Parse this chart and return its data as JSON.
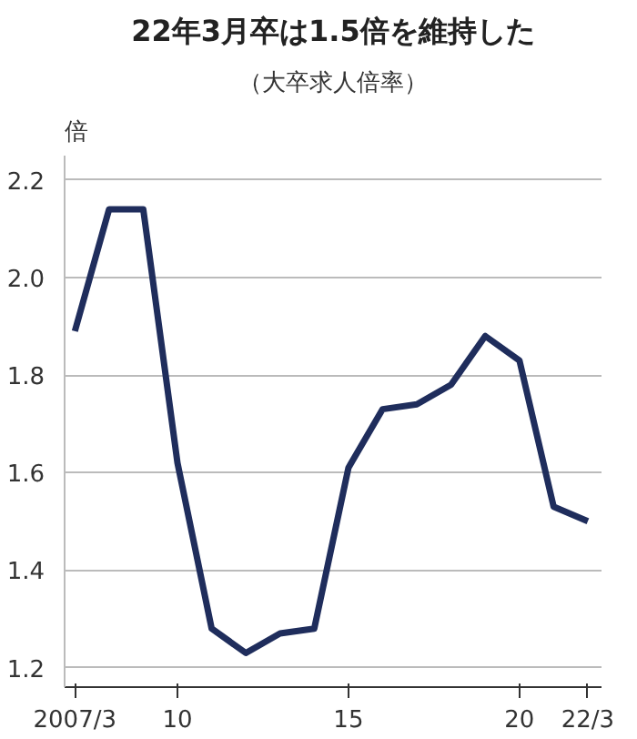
{
  "chart_data": {
    "type": "line",
    "title": "22年3月卒は1.5倍を維持した",
    "subtitle": "（大卒求人倍率）",
    "ylabel": "倍",
    "x": [
      2007,
      2008,
      2009,
      2010,
      2011,
      2012,
      2013,
      2014,
      2015,
      2016,
      2017,
      2018,
      2019,
      2020,
      2021,
      2022
    ],
    "series": [
      {
        "color": "#1f2d5c",
        "values": [
          1.89,
          2.14,
          2.14,
          1.62,
          1.28,
          1.23,
          1.27,
          1.28,
          1.61,
          1.73,
          1.74,
          1.78,
          1.88,
          1.83,
          1.53,
          1.5
        ]
      }
    ],
    "xlim": [
      2006.7,
      2022.4
    ],
    "xticks": [
      {
        "value": 2007,
        "label": "2007/3"
      },
      {
        "value": 2010,
        "label": "10"
      },
      {
        "value": 2015,
        "label": "15"
      },
      {
        "value": 2020,
        "label": "20"
      },
      {
        "value": 2022,
        "label": "22/3"
      }
    ],
    "ylim": [
      1.16,
      2.25
    ],
    "yticks": [
      1.2,
      1.4,
      1.6,
      1.8,
      {
        "value": 2,
        "label": "2.0"
      },
      2.2
    ],
    "grid": "y",
    "marker": "none",
    "line_style": "solid"
  }
}
